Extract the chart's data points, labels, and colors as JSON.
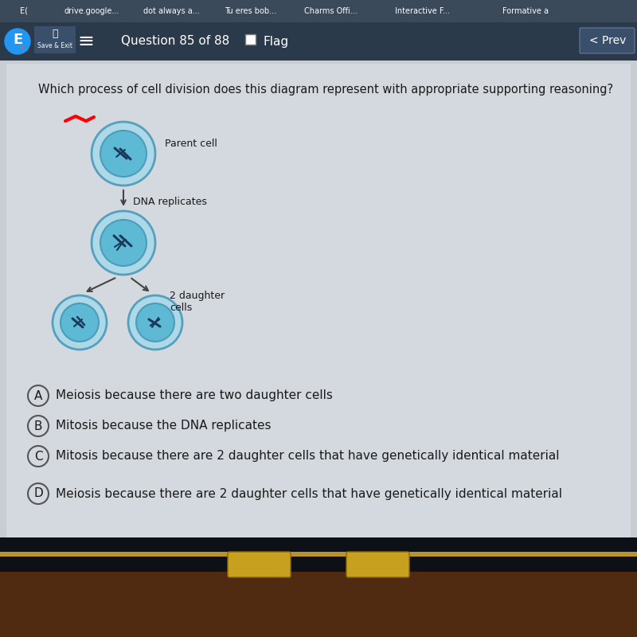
{
  "bg_top_bar": "#2b3a4a",
  "bg_tab_bar": "#3a4a5a",
  "bg_main": "#c8cdd4",
  "question_text": "Which process of cell division does this diagram represent with appropriate supporting reasoning?",
  "parent_cell_label": "Parent cell",
  "dna_label": "DNA replicates",
  "daughter_label": "2 daughter\ncells",
  "cell_outer_color": "#a8d8e8",
  "cell_inner_color": "#5ab8d4",
  "cell_border_color": "#4a9ab8",
  "options": [
    {
      "letter": "A",
      "text": "Meiosis because there are two daughter cells"
    },
    {
      "letter": "B",
      "text": "Mitosis because the DNA replicates"
    },
    {
      "letter": "C",
      "text": "Mitosis because there are 2 daughter cells that have genetically identical material"
    },
    {
      "letter": "D",
      "text": "Meiosis because there are 2 daughter cells that have genetically identical material"
    }
  ],
  "tab_labels": [
    "E(",
    "drive.google...",
    "dot always a...",
    "Tu eres bob...",
    "Charms Offi...",
    "Interactive F...",
    "Formative a"
  ],
  "nav_text": "Question 85 of 88",
  "flag_text": "Flag",
  "prev_text": "Prev",
  "text_color_dark": "#1a1a1a",
  "text_color_white": "#ffffff",
  "text_color_gray": "#555555"
}
